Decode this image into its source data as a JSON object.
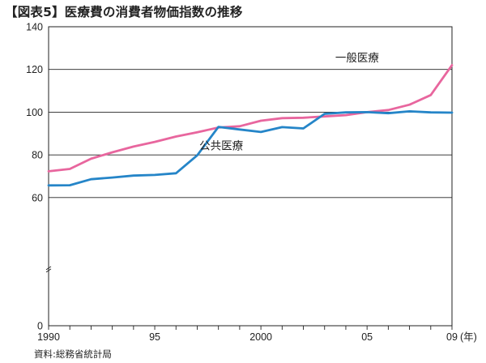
{
  "title": "【図表5】医療費の消費者物価指数の推移",
  "source": "資料:総務省統計局",
  "chart_data": {
    "type": "line",
    "title": "【図表5】医療費の消費者物価指数の推移",
    "xlabel": "",
    "ylabel": "",
    "x": [
      1990,
      1991,
      1992,
      1993,
      1994,
      1995,
      1996,
      1997,
      1998,
      1999,
      2000,
      2001,
      2002,
      2003,
      2004,
      2005,
      2006,
      2007,
      2008,
      2009
    ],
    "xlim": [
      1990,
      2009
    ],
    "ylim": [
      0,
      140
    ],
    "grid": true,
    "legend": "none",
    "x_tick_labels": [
      {
        "x": 1990,
        "label": "1990"
      },
      {
        "x": 1995,
        "label": "95"
      },
      {
        "x": 2000,
        "label": "2000"
      },
      {
        "x": 2005,
        "label": "05"
      },
      {
        "x": 2009,
        "label": "09"
      }
    ],
    "x_unit": "(年)",
    "y_ticks": [
      0,
      60,
      80,
      100,
      120,
      140
    ],
    "series": [
      {
        "name": "一般医療",
        "color": "#e8669e",
        "values": [
          72.3,
          73.4,
          78.2,
          81.2,
          83.9,
          86.1,
          88.6,
          90.6,
          92.8,
          93.4,
          96.0,
          97.2,
          97.4,
          98.0,
          98.6,
          100.0,
          101.0,
          103.5,
          108.0,
          122.0
        ]
      },
      {
        "name": "公共医療",
        "color": "#2585c8",
        "values": [
          65.7,
          65.8,
          68.6,
          69.4,
          70.3,
          70.6,
          71.4,
          79.8,
          93.1,
          91.9,
          90.7,
          93.0,
          92.4,
          99.2,
          99.9,
          100.0,
          99.5,
          100.4,
          99.9,
          99.8
        ]
      }
    ]
  }
}
